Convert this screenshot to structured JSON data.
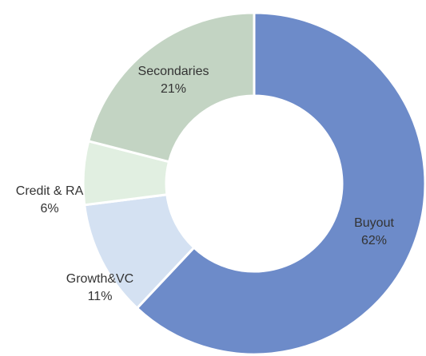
{
  "chart_data": {
    "type": "donut",
    "categories": [
      "Buyout",
      "Growth&VC",
      "Credit & RA",
      "Secondaries"
    ],
    "values": [
      62,
      11,
      6,
      21
    ],
    "value_labels": [
      "62%",
      "11%",
      "6%",
      "21%"
    ],
    "colors": [
      "#6d8bc9",
      "#d4e1f2",
      "#e1efe1",
      "#c3d4c3"
    ]
  }
}
